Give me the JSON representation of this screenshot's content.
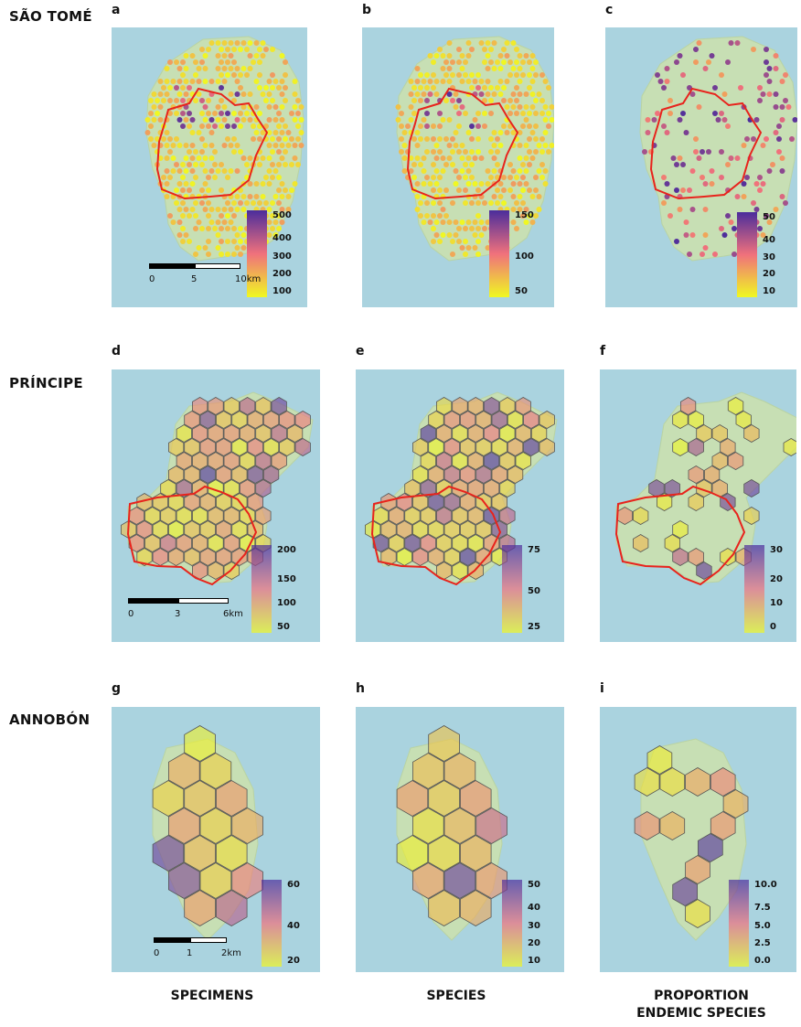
{
  "row_labels": [
    "SÃO TOMÉ",
    "PRÍNCIPE",
    "ANNOBÓN"
  ],
  "column_labels": [
    "SPECIMENS",
    "SPECIES",
    "PROPORTION\nENDEMIC SPECIES"
  ],
  "panels": [
    {
      "letter": "a",
      "legend_ticks": [
        "500",
        "400",
        "300",
        "200",
        "100"
      ]
    },
    {
      "letter": "b",
      "legend_ticks": [
        "150",
        "100",
        "50"
      ]
    },
    {
      "letter": "c",
      "legend_ticks": [
        "50",
        "40",
        "30",
        "20",
        "10"
      ]
    },
    {
      "letter": "d",
      "legend_ticks": [
        "200",
        "150",
        "100",
        "50"
      ]
    },
    {
      "letter": "e",
      "legend_ticks": [
        "75",
        "50",
        "25"
      ]
    },
    {
      "letter": "f",
      "legend_ticks": [
        "30",
        "20",
        "10",
        "0"
      ]
    },
    {
      "letter": "g",
      "legend_ticks": [
        "60",
        "40",
        "20"
      ]
    },
    {
      "letter": "h",
      "legend_ticks": [
        "50",
        "40",
        "30",
        "20",
        "10"
      ]
    },
    {
      "letter": "i",
      "legend_ticks": [
        "10.0",
        "7.5",
        "5.0",
        "2.5",
        "0.0"
      ]
    }
  ],
  "scalebars": [
    {
      "labels": [
        "0",
        "5",
        "10km"
      ]
    },
    {
      "labels": [
        "0",
        "3",
        "6km"
      ]
    },
    {
      "labels": [
        "0",
        "1",
        "2km"
      ]
    }
  ],
  "colors": {
    "sea": "#aad3df",
    "land": "#c7dfb4",
    "boundary": "#e8231c",
    "low": "#f0f921",
    "mid": "#f0717c",
    "high": "#4b2d9c"
  }
}
